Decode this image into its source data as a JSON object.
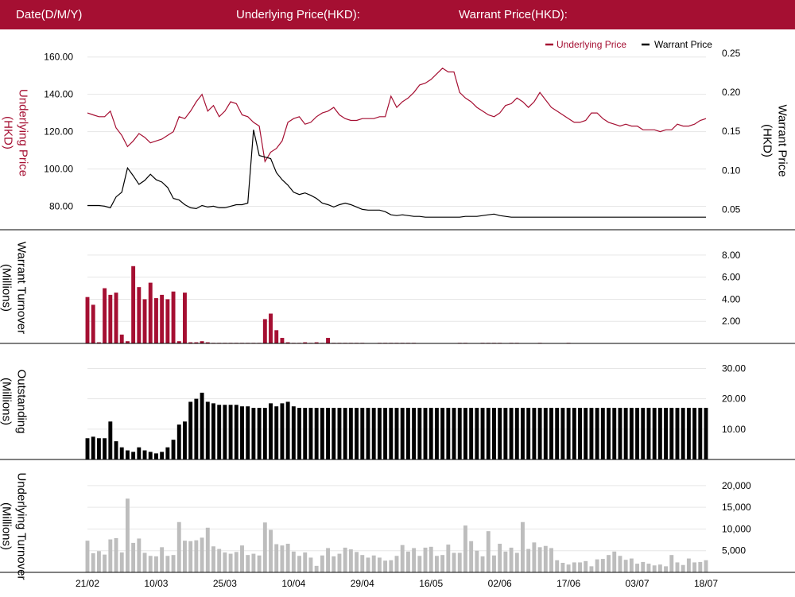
{
  "header": {
    "date_label": "Date(D/M/Y)",
    "underlying_label": "Underlying Price(HKD):",
    "warrant_label": "Warrant Price(HKD):"
  },
  "colors": {
    "brand": "#a50f32",
    "underlying": "#a50f32",
    "warrant": "#000000",
    "underlying_turnover": "#bdbdbd",
    "grid": "#e6e6e6"
  },
  "chart_data": [
    {
      "type": "line",
      "title": "",
      "legend": [
        "Underlying Price",
        "Warrant Price"
      ],
      "legend_position": "top-right",
      "ylabel_left": "Underlying Price (HKD)",
      "ylabel_right": "Warrant  Price (HKD)",
      "yticks_left": [
        "80.00",
        "100.00",
        "120.00",
        "140.00",
        "160.00"
      ],
      "yticks_right": [
        "0.05",
        "0.10",
        "0.15",
        "0.20",
        "0.25"
      ],
      "ylim_left": [
        70,
        162
      ],
      "ylim_right": [
        0.03,
        0.25
      ],
      "x_ticks": [
        "21/02",
        "10/03",
        "25/03",
        "10/04",
        "29/04",
        "16/05",
        "02/06",
        "17/06",
        "03/07",
        "18/07"
      ],
      "grid": true,
      "series": [
        {
          "name": "Underlying Price",
          "axis": "left",
          "values": [
            130,
            129,
            128,
            128,
            131,
            122,
            118,
            112,
            115,
            119,
            117,
            114,
            115,
            116,
            118,
            120,
            128,
            127,
            131,
            136,
            140,
            131,
            134,
            128,
            131,
            136,
            135,
            129,
            128,
            125,
            123,
            104,
            109,
            111,
            115,
            125,
            127,
            128,
            124,
            125,
            128,
            130,
            131,
            133,
            129,
            127,
            126,
            126,
            127,
            127,
            127,
            128,
            128,
            139,
            133,
            136,
            138,
            141,
            145,
            146,
            148,
            151,
            154,
            152,
            152,
            141,
            138,
            136,
            133,
            131,
            129,
            128,
            130,
            134,
            135,
            138,
            136,
            133,
            136,
            141,
            137,
            133,
            131,
            129,
            127,
            125,
            125,
            126,
            130,
            130,
            127,
            125,
            124,
            123,
            124,
            123,
            123,
            121,
            121,
            121,
            120,
            121,
            121,
            124,
            123,
            123,
            124,
            126,
            127
          ]
        },
        {
          "name": "Warrant Price",
          "axis": "right",
          "values": [
            0.055,
            0.055,
            0.055,
            0.054,
            0.052,
            0.066,
            0.072,
            0.103,
            0.093,
            0.082,
            0.087,
            0.095,
            0.088,
            0.085,
            0.078,
            0.064,
            0.062,
            0.056,
            0.052,
            0.051,
            0.055,
            0.053,
            0.054,
            0.052,
            0.052,
            0.054,
            0.056,
            0.056,
            0.058,
            0.152,
            0.119,
            0.117,
            0.115,
            0.097,
            0.088,
            0.081,
            0.072,
            0.069,
            0.071,
            0.068,
            0.064,
            0.058,
            0.056,
            0.053,
            0.056,
            0.058,
            0.056,
            0.053,
            0.05,
            0.049,
            0.049,
            0.049,
            0.047,
            0.043,
            0.042,
            0.043,
            0.042,
            0.041,
            0.041,
            0.04,
            0.04,
            0.04,
            0.04,
            0.04,
            0.04,
            0.04,
            0.041,
            0.041,
            0.041,
            0.042,
            0.043,
            0.044,
            0.042,
            0.041,
            0.04,
            0.04,
            0.04,
            0.04,
            0.04,
            0.04,
            0.04,
            0.04,
            0.04,
            0.04,
            0.04,
            0.04,
            0.04,
            0.04,
            0.04,
            0.04,
            0.04,
            0.04,
            0.04,
            0.04,
            0.04,
            0.04,
            0.04,
            0.04,
            0.04,
            0.04,
            0.04,
            0.04,
            0.04,
            0.04,
            0.04,
            0.04,
            0.04,
            0.04,
            0.04
          ]
        }
      ]
    },
    {
      "type": "bar",
      "ylabel": "Warrant  Turnover (Millions)",
      "yticks": [
        "2.00",
        "4.00",
        "6.00",
        "8.00"
      ],
      "ylim": [
        0,
        9
      ],
      "color": "#a50f32",
      "values": [
        4.2,
        3.5,
        0.1,
        5.0,
        4.4,
        4.6,
        0.8,
        0.2,
        7.0,
        5.1,
        4.0,
        5.5,
        4.1,
        4.4,
        4.0,
        4.7,
        0.2,
        4.6,
        0.1,
        0.1,
        0.2,
        0.1,
        0.05,
        0.05,
        0.05,
        0.05,
        0.05,
        0.05,
        0.05,
        0.05,
        0.05,
        2.2,
        2.7,
        1.2,
        0.5,
        0.1,
        0.05,
        0.05,
        0.1,
        0.05,
        0.1,
        0.05,
        0.5,
        0.05,
        0.05,
        0.05,
        0.05,
        0.05,
        0.05,
        0,
        0,
        0.05,
        0.05,
        0.05,
        0.05,
        0.05,
        0.05,
        0.05,
        0,
        0,
        0,
        0,
        0,
        0,
        0,
        0.05,
        0.05,
        0,
        0,
        0.05,
        0.05,
        0.05,
        0.05,
        0,
        0.05,
        0.05,
        0,
        0,
        0,
        0.05,
        0,
        0,
        0,
        0,
        0.05,
        0,
        0,
        0,
        0,
        0,
        0,
        0,
        0,
        0,
        0,
        0,
        0,
        0,
        0,
        0,
        0,
        0,
        0,
        0,
        0,
        0,
        0,
        0,
        0
      ]
    },
    {
      "type": "bar",
      "ylabel": "Outstanding (Millions)",
      "yticks": [
        "10.00",
        "20.00",
        "30.00"
      ],
      "ylim": [
        0,
        33
      ],
      "color": "#000000",
      "values": [
        7,
        7.5,
        7,
        7,
        12.5,
        6,
        4,
        3,
        2.5,
        4,
        3,
        2.5,
        2,
        2.5,
        4,
        6.5,
        11.5,
        12.5,
        19,
        20,
        22,
        19,
        18.5,
        18,
        18,
        18,
        18,
        17.5,
        17.5,
        17,
        17,
        17,
        18.5,
        17.5,
        18.5,
        19,
        17.5,
        17,
        17,
        17,
        17,
        17,
        17,
        17,
        17,
        17,
        17,
        17,
        17,
        17,
        17,
        17,
        17,
        17,
        17,
        17,
        17,
        17,
        17,
        17,
        17,
        17,
        17,
        17,
        17,
        17,
        17,
        17,
        17,
        17,
        17,
        17,
        17,
        17,
        17,
        17,
        17,
        17,
        17,
        17,
        17,
        17,
        17,
        17,
        17,
        17,
        17,
        17,
        17,
        17,
        17,
        17,
        17,
        17,
        17,
        17,
        17,
        17,
        17,
        17,
        17,
        17,
        17,
        17,
        17,
        17,
        17,
        17,
        17
      ]
    },
    {
      "type": "bar",
      "ylabel": "Underlying Turnover (Millions)",
      "yticks": [
        "5,000",
        "10,000",
        "15,000",
        "20,000"
      ],
      "ylim": [
        0,
        22000
      ],
      "color": "#bdbdbd",
      "values": [
        7300,
        4400,
        4900,
        4100,
        7600,
        7900,
        4600,
        17000,
        6800,
        7800,
        4500,
        3800,
        3700,
        5800,
        3800,
        4000,
        11600,
        7300,
        7200,
        7400,
        8000,
        10300,
        6000,
        5400,
        4600,
        4300,
        4700,
        6200,
        4000,
        4300,
        3900,
        11500,
        9800,
        6500,
        6200,
        6600,
        4800,
        3800,
        4600,
        3400,
        1500,
        3900,
        5600,
        3700,
        4300,
        5700,
        5300,
        4700,
        4000,
        3400,
        3900,
        3400,
        2700,
        2800,
        3800,
        6300,
        4800,
        5600,
        3800,
        5700,
        5900,
        3800,
        4000,
        6400,
        4500,
        4500,
        10800,
        7200,
        5000,
        3700,
        9500,
        3900,
        6600,
        4800,
        5700,
        4500,
        11600,
        5400,
        6900,
        5800,
        6100,
        5600,
        2800,
        2200,
        1800,
        2300,
        2300,
        2600,
        1400,
        3000,
        3100,
        4000,
        4800,
        3800,
        2900,
        3200,
        2000,
        2400,
        2000,
        1600,
        1800,
        1400,
        4000,
        2300,
        1700,
        3200,
        2300,
        2400,
        2800
      ]
    }
  ]
}
